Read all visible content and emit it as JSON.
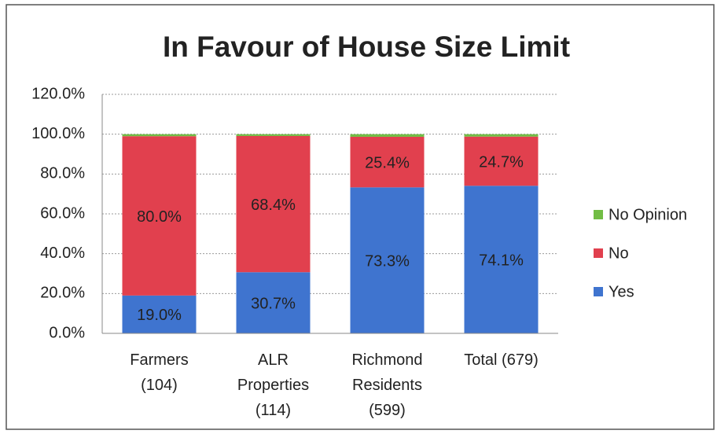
{
  "chart_data": {
    "type": "stacked_bar",
    "title": "In Favour of House Size Limit",
    "categories": [
      "Farmers\n(104)",
      "ALR\nProperties\n(114)",
      "Richmond\nResidents\n(599)",
      "Total (679)"
    ],
    "series": [
      {
        "name": "Yes",
        "color": "#3f74cf",
        "values": [
          19.0,
          30.7,
          73.3,
          74.1
        ],
        "value_labels": [
          "19.0%",
          "30.7%",
          "73.3%",
          "74.1%"
        ]
      },
      {
        "name": "No",
        "color": "#e1404e",
        "values": [
          80.0,
          68.4,
          25.4,
          24.7
        ],
        "value_labels": [
          "80.0%",
          "68.4%",
          "25.4%",
          "24.7%"
        ]
      },
      {
        "name": "No Opinion",
        "color": "#72bd45",
        "values": [
          1.0,
          0.9,
          1.3,
          1.2
        ]
      }
    ],
    "ylim": [
      0,
      120
    ],
    "yticks": [
      {
        "value": 0,
        "label": "0.0%"
      },
      {
        "value": 20,
        "label": "20.0%"
      },
      {
        "value": 40,
        "label": "40.0%"
      },
      {
        "value": 60,
        "label": "60.0%"
      },
      {
        "value": 80,
        "label": "80.0%"
      },
      {
        "value": 100,
        "label": "100.0%"
      },
      {
        "value": 120,
        "label": "120.0%"
      }
    ],
    "grid": true,
    "legend": "right"
  }
}
